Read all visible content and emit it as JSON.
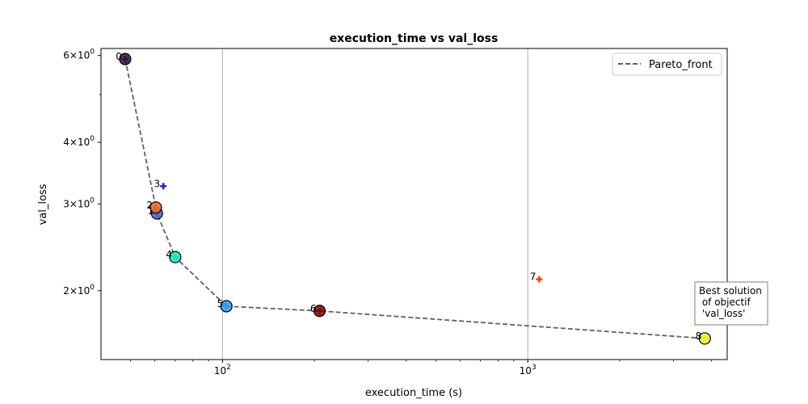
{
  "chart_data": {
    "type": "scatter",
    "title": "execution_time vs val_loss",
    "xlabel": "execution_time (s)",
    "ylabel": "val_loss",
    "x_scale": "log",
    "y_scale": "log",
    "xlim": [
      40,
      4500
    ],
    "ylim": [
      1.45,
      6.2
    ],
    "grid": "vertical major lines at x-axis decades",
    "x_ticks": [
      {
        "value": 100,
        "base": "10",
        "exp": "2"
      },
      {
        "value": 1000,
        "base": "10",
        "exp": "3"
      }
    ],
    "y_ticks": [
      {
        "value": 2,
        "mant": "2",
        "base": "10",
        "exp": "0"
      },
      {
        "value": 3,
        "mant": "3",
        "base": "10",
        "exp": "0"
      },
      {
        "value": 4,
        "mant": "4",
        "base": "10",
        "exp": "0"
      },
      {
        "value": 6,
        "mant": "6",
        "base": "10",
        "exp": "0"
      }
    ],
    "points": [
      {
        "label": "0",
        "x": 48,
        "y": 5.9,
        "color": "#30123b",
        "pareto": true
      },
      {
        "label": "1",
        "x": 61,
        "y": 2.87,
        "color": "#4662d7",
        "pareto": true
      },
      {
        "label": "2",
        "x": 60.5,
        "y": 2.95,
        "color": "#e96f1f",
        "pareto": true
      },
      {
        "label": "3",
        "x": 64,
        "y": 3.26,
        "color": "#1a1fd6",
        "pareto": false
      },
      {
        "label": "4",
        "x": 70,
        "y": 2.34,
        "color": "#1ae4b6",
        "pareto": true
      },
      {
        "label": "5",
        "x": 103,
        "y": 1.86,
        "color": "#2a9df4",
        "pareto": true
      },
      {
        "label": "6",
        "x": 208,
        "y": 1.82,
        "color": "#7a0403",
        "pareto": true
      },
      {
        "label": "7",
        "x": 1090,
        "y": 2.11,
        "color": "#fb3b0d",
        "pareto": false
      },
      {
        "label": "8",
        "x": 3800,
        "y": 1.6,
        "color": "#e8ef33",
        "pareto": true
      }
    ],
    "pareto_front": {
      "name": "Pareto_front",
      "color": "#616161",
      "style": "dashed",
      "x": [
        48,
        60.5,
        61,
        70,
        103,
        208,
        3800
      ],
      "y": [
        5.9,
        2.95,
        2.87,
        2.34,
        1.86,
        1.82,
        1.6
      ]
    },
    "legend": {
      "position": "top-right",
      "entries": [
        "Pareto_front"
      ]
    },
    "annotation": {
      "lines": [
        "Best solution",
        " of objectif",
        " 'val_loss'"
      ],
      "target_label": "8"
    }
  }
}
